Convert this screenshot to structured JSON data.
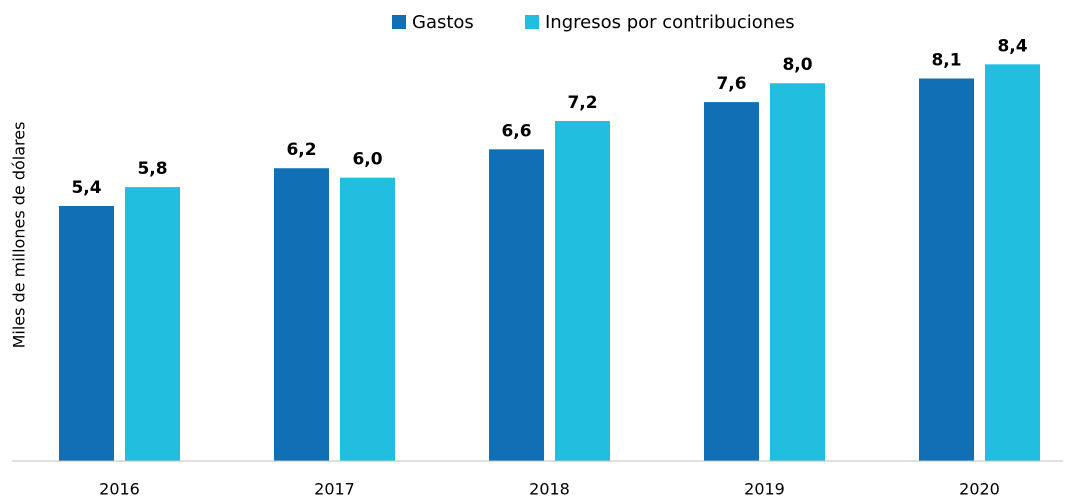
{
  "chart_data": {
    "type": "bar",
    "y_label": "Miles de millones de dólares",
    "categories": [
      "2016",
      "2017",
      "2018",
      "2019",
      "2020"
    ],
    "series": [
      {
        "name": "Gastos",
        "color": "#1170b5",
        "values": [
          5.4,
          6.2,
          6.6,
          7.6,
          8.1
        ],
        "value_labels": [
          "5,4",
          "6,2",
          "6,6",
          "7,6",
          "8,1"
        ]
      },
      {
        "name": "Ingresos por contribuciones",
        "color": "#22bee0",
        "values": [
          5.8,
          6.0,
          7.2,
          8.0,
          8.4
        ],
        "value_labels": [
          "5,8",
          "6,0",
          "7,2",
          "8,0",
          "8,4"
        ]
      }
    ],
    "ylim": [
      0,
      9
    ],
    "legend": "top"
  }
}
